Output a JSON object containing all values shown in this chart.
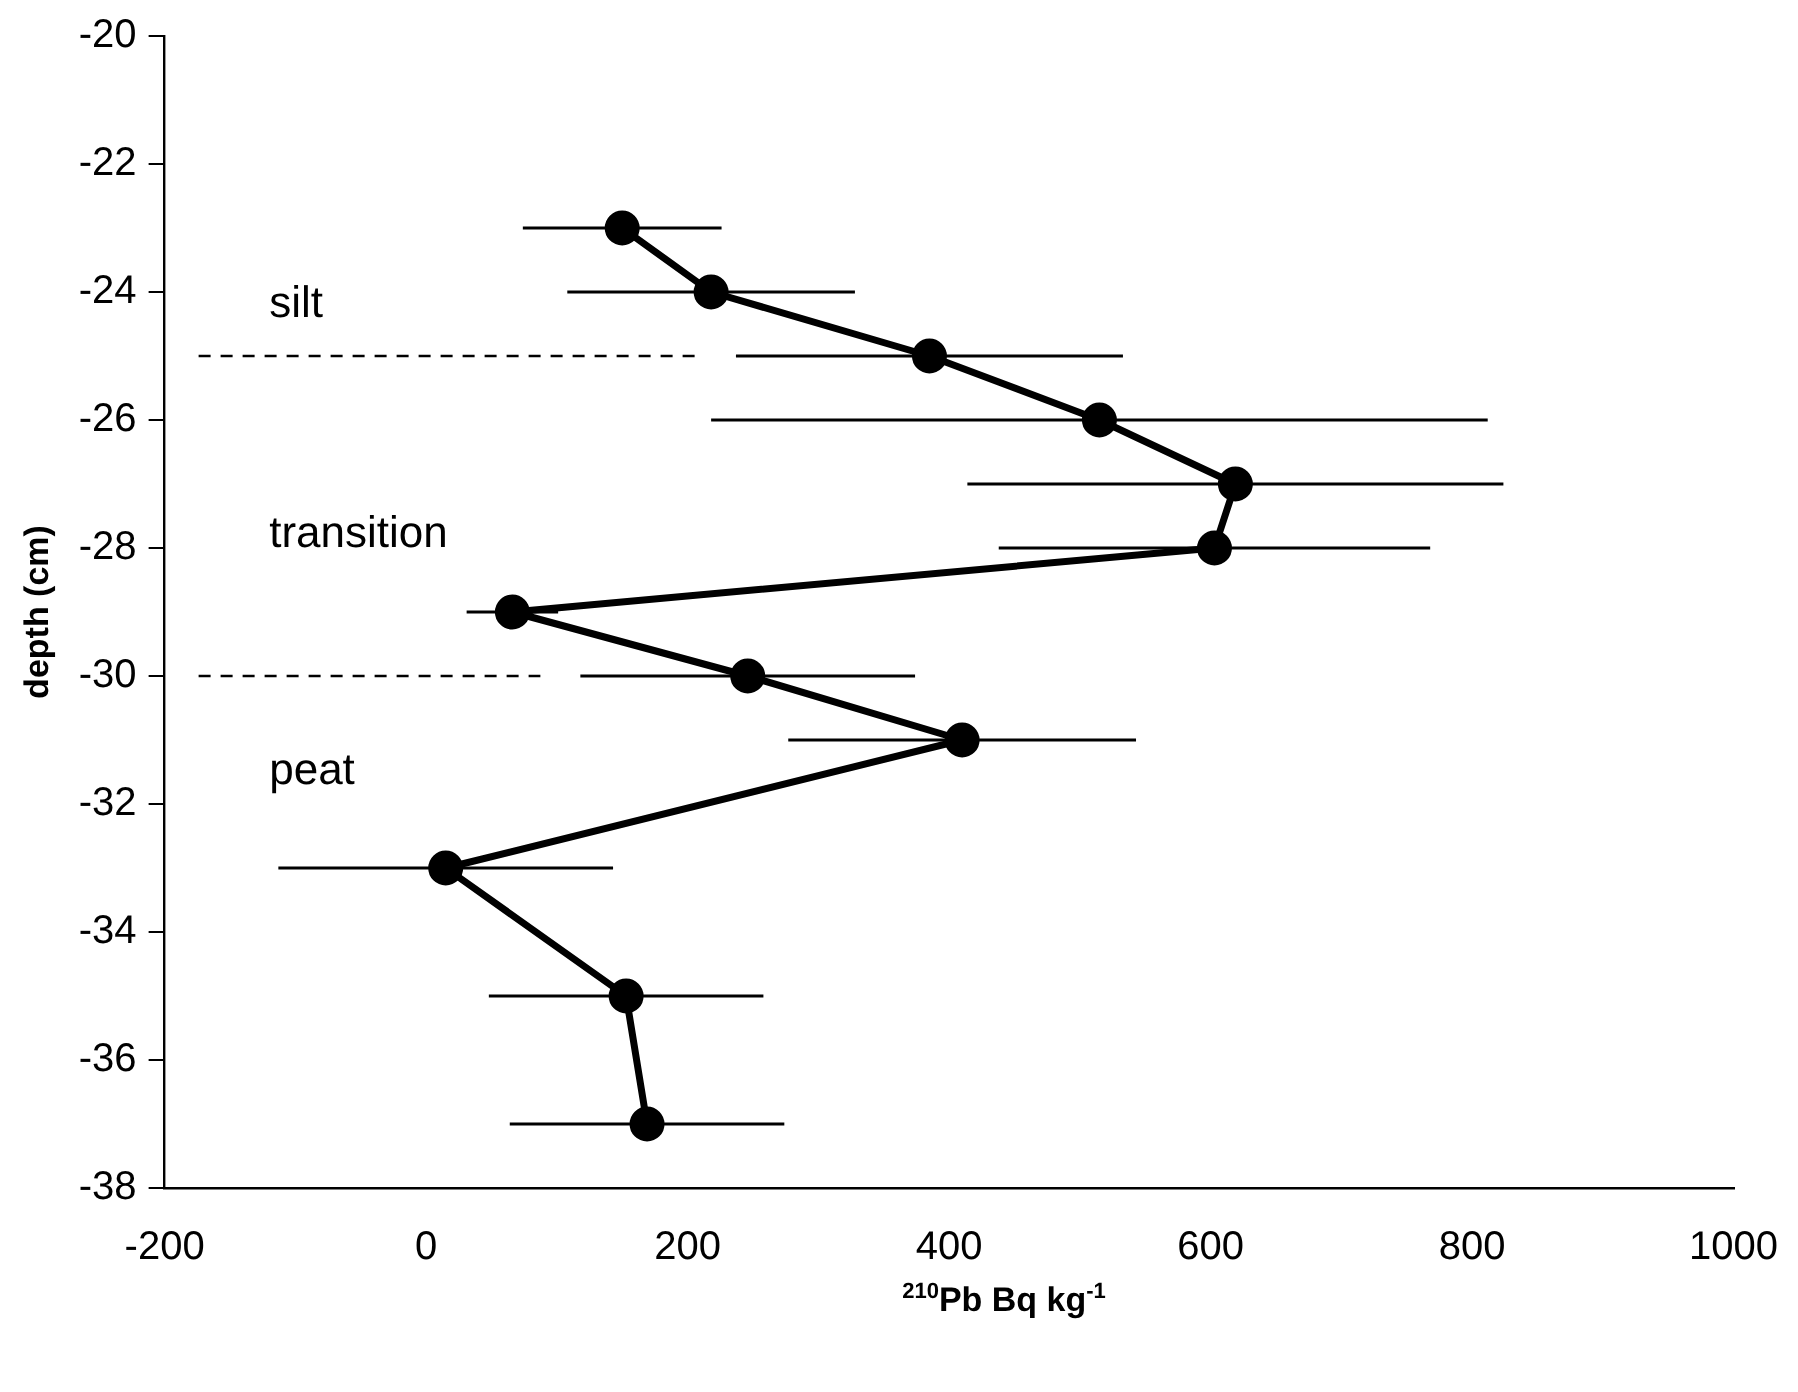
{
  "chart_data": {
    "type": "line",
    "xlabel": "$^{210}$Pb Bq kg$^{-1}$",
    "ylabel": "depth (cm)",
    "x": [
      150,
      218,
      385,
      515,
      619,
      603,
      66,
      246,
      410,
      15,
      153,
      169
    ],
    "values": [
      -23,
      -24,
      -25,
      -26,
      -27,
      -28,
      -29,
      -30,
      -31,
      -33,
      -35,
      -37
    ],
    "xerrors": [
      76,
      110,
      148,
      297,
      205,
      165,
      35,
      128,
      133,
      128,
      105,
      105
    ],
    "color": "#000000",
    "marker": "circle",
    "line_style": "solid",
    "xlim": [
      -200,
      1000
    ],
    "xticks": [
      -200,
      0,
      200,
      400,
      600,
      800,
      1000
    ],
    "ylim": [
      -38,
      -20
    ],
    "yticks": [
      -38,
      -36,
      -34,
      -32,
      -30,
      -28,
      -26,
      -24,
      -22,
      -20
    ],
    "ref_lines": [
      {
        "axis": "y",
        "value": -25,
        "line_style": "dashed",
        "color": "#000000"
      },
      {
        "axis": "y",
        "value": -30,
        "line_style": "dashed",
        "color": "#000000"
      }
    ],
    "annotations": [
      "silt",
      "transition",
      "peat"
    ],
    "grid": false,
    "legend": false
  }
}
